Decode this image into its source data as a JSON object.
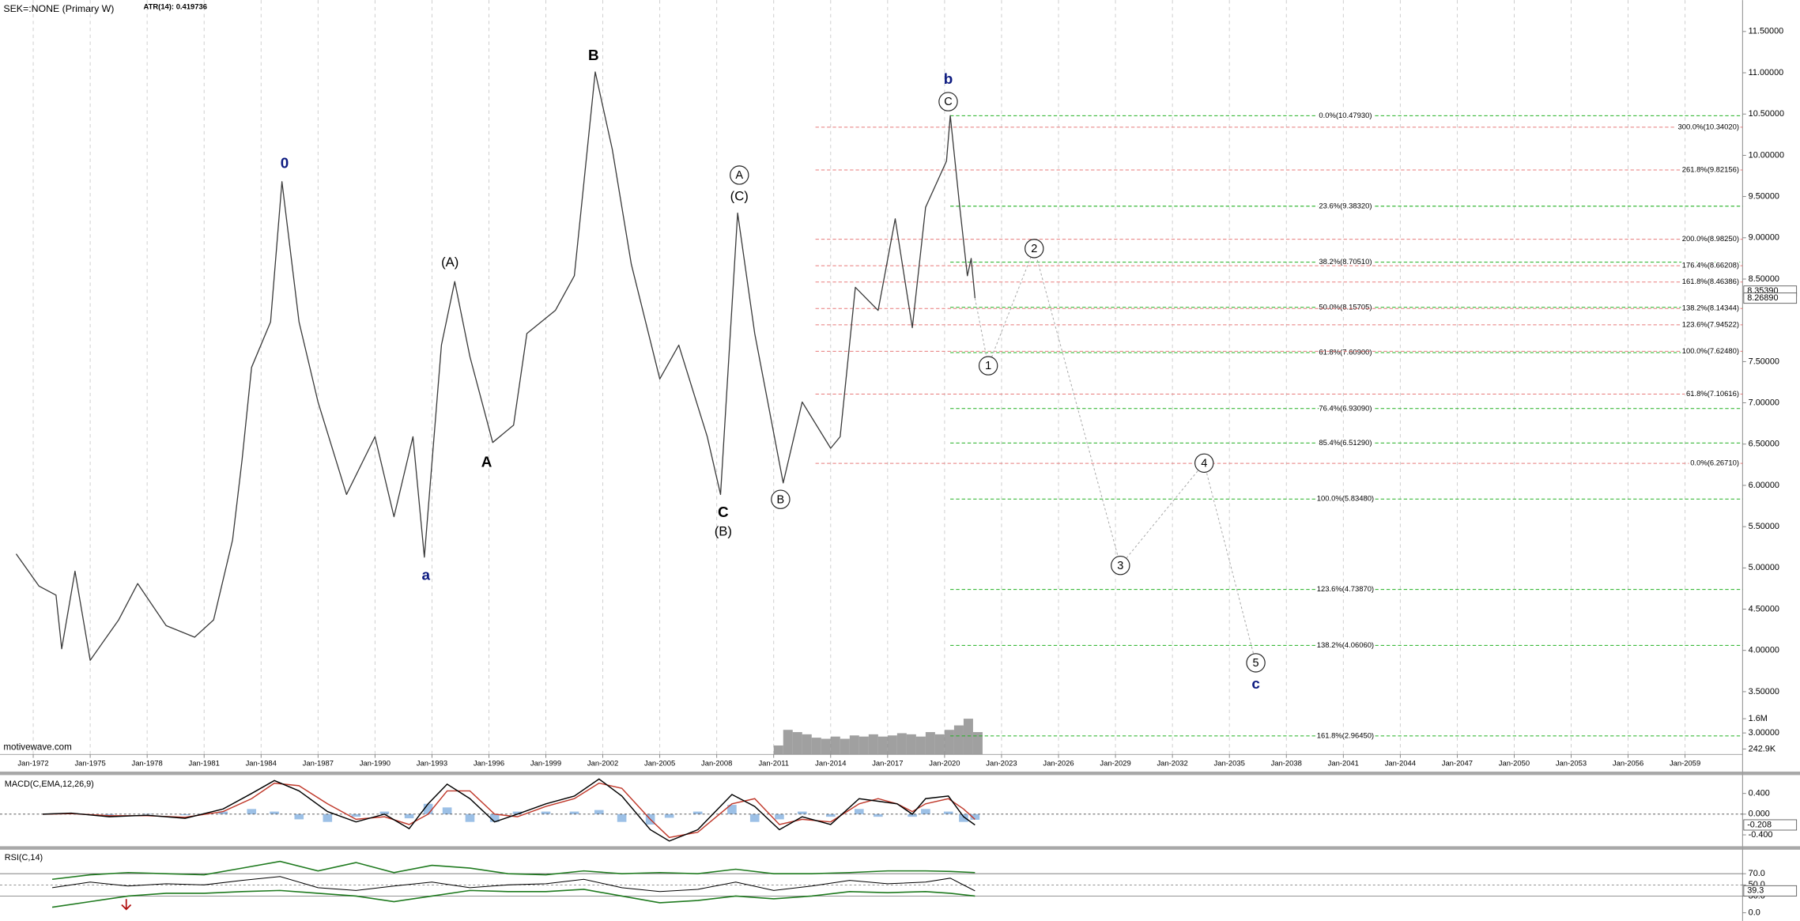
{
  "chart_data": [
    {
      "type": "line",
      "title": "SEK=:NONE (Primary W)",
      "subtitle": "ATR(14): 0.419736",
      "watermark": "motivewave.com",
      "color": "#3a3a3a",
      "grid": "x",
      "x": [
        1971.1,
        1972.3,
        1973.2,
        1973.5,
        1974.2,
        1975.0,
        1976.5,
        1977.5,
        1979.0,
        1980.5,
        1981.5,
        1982.5,
        1983.0,
        1983.5,
        1984.5,
        1985.1,
        1986.0,
        1987.0,
        1988.5,
        1990.0,
        1991.0,
        1992.0,
        1992.6,
        1993.5,
        1994.2,
        1995.0,
        1996.2,
        1997.3,
        1998.0,
        1999.5,
        2000.5,
        2001.6,
        2002.5,
        2003.5,
        2005.0,
        2006.0,
        2007.5,
        2008.2,
        2009.1,
        2010.0,
        2011.5,
        2012.5,
        2014.0,
        2014.5,
        2015.3,
        2016.5,
        2017.4,
        2018.3,
        2019.0,
        2020.1,
        2020.3,
        2020.8,
        2021.2,
        2021.4,
        2021.6
      ],
      "values": [
        5.17,
        4.78,
        4.67,
        4.02,
        4.96,
        3.88,
        4.37,
        4.81,
        4.3,
        4.16,
        4.37,
        5.34,
        6.31,
        7.43,
        7.98,
        9.68,
        7.98,
        7.01,
        5.89,
        6.59,
        5.62,
        6.59,
        5.13,
        7.7,
        8.47,
        7.56,
        6.52,
        6.73,
        7.84,
        8.12,
        8.54,
        11.01,
        10.07,
        8.68,
        7.29,
        7.7,
        6.59,
        5.89,
        9.3,
        7.84,
        6.03,
        7.01,
        6.45,
        6.59,
        8.4,
        8.12,
        9.23,
        7.91,
        9.37,
        9.93,
        10.48,
        9.37,
        8.54,
        8.75,
        8.2689
      ],
      "xlim": [
        1970.25,
        2062.03
      ],
      "ylim": [
        2.74,
        11.88
      ],
      "xticks": [
        {
          "value": 1972,
          "label": "Jan-1972"
        },
        {
          "value": 1975,
          "label": "Jan-1975"
        },
        {
          "value": 1978,
          "label": "Jan-1978"
        },
        {
          "value": 1981,
          "label": "Jan-1981"
        },
        {
          "value": 1984,
          "label": "Jan-1984"
        },
        {
          "value": 1987,
          "label": "Jan-1987"
        },
        {
          "value": 1990,
          "label": "Jan-1990"
        },
        {
          "value": 1993,
          "label": "Jan-1993"
        },
        {
          "value": 1996,
          "label": "Jan-1996"
        },
        {
          "value": 1999,
          "label": "Jan-1999"
        },
        {
          "value": 2002,
          "label": "Jan-2002"
        },
        {
          "value": 2005,
          "label": "Jan-2005"
        },
        {
          "value": 2008,
          "label": "Jan-2008"
        },
        {
          "value": 2011,
          "label": "Jan-2011"
        },
        {
          "value": 2014,
          "label": "Jan-2014"
        },
        {
          "value": 2017,
          "label": "Jan-2017"
        },
        {
          "value": 2020,
          "label": "Jan-2020"
        },
        {
          "value": 2023,
          "label": "Jan-2023"
        },
        {
          "value": 2026,
          "label": "Jan-2026"
        },
        {
          "value": 2029,
          "label": "Jan-2029"
        },
        {
          "value": 2032,
          "label": "Jan-2032"
        },
        {
          "value": 2035,
          "label": "Jan-2035"
        },
        {
          "value": 2038,
          "label": "Jan-2038"
        },
        {
          "value": 2041,
          "label": "Jan-2041"
        },
        {
          "value": 2044,
          "label": "Jan-2044"
        },
        {
          "value": 2047,
          "label": "Jan-2047"
        },
        {
          "value": 2050,
          "label": "Jan-2050"
        },
        {
          "value": 2053,
          "label": "Jan-2053"
        },
        {
          "value": 2056,
          "label": "Jan-2056"
        },
        {
          "value": 2059,
          "label": "Jan-2059"
        }
      ],
      "yticks": [
        {
          "value": 3.0,
          "label": "3.00000"
        },
        {
          "value": 3.5,
          "label": "3.50000"
        },
        {
          "value": 4.0,
          "label": "4.00000"
        },
        {
          "value": 4.5,
          "label": "4.50000"
        },
        {
          "value": 5.0,
          "label": "5.00000"
        },
        {
          "value": 5.5,
          "label": "5.50000"
        },
        {
          "value": 6.0,
          "label": "6.00000"
        },
        {
          "value": 6.5,
          "label": "6.50000"
        },
        {
          "value": 7.0,
          "label": "7.00000"
        },
        {
          "value": 7.5,
          "label": "7.50000"
        },
        {
          "value": 8.5,
          "label": "8.50000"
        },
        {
          "value": 9.0,
          "label": "9.00000"
        },
        {
          "value": 9.5,
          "label": "9.50000"
        },
        {
          "value": 10.0,
          "label": "10.00000"
        },
        {
          "value": 10.5,
          "label": "10.50000"
        },
        {
          "value": 11.0,
          "label": "11.00000"
        },
        {
          "value": 11.5,
          "label": "11.50000"
        }
      ],
      "price_labels": [
        {
          "value": 8.3539,
          "label": "8.35390"
        },
        {
          "value": 8.2689,
          "label": "8.26890"
        }
      ],
      "fib_levels": [
        {
          "level": 10.4793,
          "label": "0.0%(10.47930)",
          "color": "#22b022",
          "from": 2020.3
        },
        {
          "level": 9.3832,
          "label": "23.6%(9.38320)",
          "color": "#22b022",
          "from": 2020.3
        },
        {
          "level": 8.7051,
          "label": "38.2%(8.70510)",
          "color": "#22b022",
          "from": 2020.3
        },
        {
          "level": 8.15705,
          "label": "50.0%(8.15705)",
          "color": "#22b022",
          "from": 2020.3
        },
        {
          "level": 7.609,
          "label": "61.8%(7.60900)",
          "color": "#22b022",
          "from": 2020.3
        },
        {
          "level": 6.9309,
          "label": "76.4%(6.93090)",
          "color": "#22b022",
          "from": 2020.3
        },
        {
          "level": 6.5129,
          "label": "85.4%(6.51290)",
          "color": "#22b022",
          "from": 2020.3
        },
        {
          "level": 5.8348,
          "label": "100.0%(5.83480)",
          "color": "#22b022",
          "from": 2020.3
        },
        {
          "level": 4.7387,
          "label": "123.6%(4.73870)",
          "color": "#22b022",
          "from": 2020.3
        },
        {
          "level": 4.0606,
          "label": "138.2%(4.06060)",
          "color": "#22b022",
          "from": 2020.3
        },
        {
          "level": 2.9645,
          "label": "161.8%(2.96450)",
          "color": "#22b022",
          "from": 2020.3
        },
        {
          "level": 10.3402,
          "label": "300.0%(10.34020)",
          "color": "#e87a7a",
          "from": 2013.2
        },
        {
          "level": 9.82156,
          "label": "261.8%(9.82156)",
          "color": "#e87a7a",
          "from": 2013.2
        },
        {
          "level": 8.9825,
          "label": "200.0%(8.98250)",
          "color": "#e87a7a",
          "from": 2013.2
        },
        {
          "level": 8.66208,
          "label": "176.4%(8.66208)",
          "color": "#e87a7a",
          "from": 2013.2
        },
        {
          "level": 8.46386,
          "label": "161.8%(8.46386)",
          "color": "#e87a7a",
          "from": 2013.2
        },
        {
          "level": 8.14344,
          "label": "138.2%(8.14344)",
          "color": "#e87a7a",
          "from": 2013.2
        },
        {
          "level": 7.94522,
          "label": "123.6%(7.94522)",
          "color": "#e87a7a",
          "from": 2013.2
        },
        {
          "level": 7.6248,
          "label": "100.0%(7.62480)",
          "color": "#e87a7a",
          "from": 2013.2
        },
        {
          "level": 7.10616,
          "label": "61.8%(7.10616)",
          "color": "#e87a7a",
          "from": 2013.2
        },
        {
          "level": 6.2671,
          "label": "0.0%(6.26710)",
          "color": "#e87a7a",
          "from": 2013.2
        }
      ],
      "annotations": [
        {
          "text": "0",
          "x": 1985.24,
          "y": 9.9,
          "color": "#0c1a80",
          "style": "bold"
        },
        {
          "text": "a",
          "x": 1992.68,
          "y": 4.91,
          "color": "#0c1a80",
          "style": "bold"
        },
        {
          "text": "(A)",
          "x": 1993.95,
          "y": 8.7,
          "color": "#000000",
          "style": "plain"
        },
        {
          "text": "A",
          "x": 1995.88,
          "y": 6.28,
          "color": "#000000",
          "style": "bold"
        },
        {
          "text": "B",
          "x": 2001.51,
          "y": 11.21,
          "color": "#000000",
          "style": "bold"
        },
        {
          "text": "A",
          "x": 2009.19,
          "y": 9.76,
          "color": "#000000",
          "style": "circle"
        },
        {
          "text": "(C)",
          "x": 2009.19,
          "y": 9.5,
          "color": "#000000",
          "style": "plain"
        },
        {
          "text": "C",
          "x": 2008.34,
          "y": 5.67,
          "color": "#000000",
          "style": "bold"
        },
        {
          "text": "(B)",
          "x": 2008.34,
          "y": 5.44,
          "color": "#000000",
          "style": "plain"
        },
        {
          "text": "B",
          "x": 2011.36,
          "y": 5.83,
          "color": "#000000",
          "style": "circle"
        },
        {
          "text": "b",
          "x": 2020.19,
          "y": 10.92,
          "color": "#0c1a80",
          "style": "bold"
        },
        {
          "text": "C",
          "x": 2020.19,
          "y": 10.65,
          "color": "#000000",
          "style": "circle"
        },
        {
          "text": "c",
          "x": 2036.39,
          "y": 3.59,
          "color": "#0c1a80",
          "style": "bold"
        }
      ],
      "projection": {
        "labels": [
          "1",
          "2",
          "3",
          "4",
          "5"
        ],
        "x": [
          2022.3,
          2024.72,
          2029.26,
          2033.67,
          2036.39
        ],
        "values": [
          7.45,
          8.87,
          5.03,
          6.27,
          3.85
        ]
      },
      "volume": {
        "color": "#808080",
        "x": [
          2011.0,
          2011.5,
          2012.0,
          2012.5,
          2013.0,
          2013.5,
          2014.0,
          2014.5,
          2015.0,
          2015.5,
          2016.0,
          2016.5,
          2017.0,
          2017.5,
          2018.0,
          2018.5,
          2019.0,
          2019.5,
          2020.0,
          2020.5,
          2021.0,
          2021.5
        ],
        "values": [
          400000,
          1100000,
          1000000,
          900000,
          750000,
          700000,
          800000,
          700000,
          850000,
          800000,
          900000,
          800000,
          850000,
          950000,
          900000,
          800000,
          1000000,
          900000,
          1100000,
          1300000,
          1600000,
          1000000
        ],
        "ylim": [
          0,
          1750000
        ],
        "yticks": [
          {
            "value": 1600000,
            "label": "1.6M"
          },
          {
            "value": 242900,
            "label": "242.9K"
          }
        ]
      }
    },
    {
      "type": "line",
      "title": "MACD(C,EMA,12,26,9)",
      "x": [
        1972.5,
        1974,
        1976,
        1978,
        1980,
        1982,
        1983.5,
        1984.7,
        1986,
        1987.5,
        1989,
        1990.5,
        1991.8,
        1992.8,
        1993.8,
        1995,
        1996.3,
        1997.5,
        1999,
        2000.5,
        2001.8,
        2003,
        2004.5,
        2005.5,
        2007,
        2008.8,
        2010,
        2011.3,
        2012.5,
        2014,
        2015.5,
        2016.5,
        2017.5,
        2018.3,
        2019,
        2020.2,
        2021,
        2021.6
      ],
      "series": [
        {
          "color": "#000000",
          "values": [
            0.0,
            0.02,
            -0.05,
            -0.02,
            -0.08,
            0.1,
            0.4,
            0.65,
            0.45,
            0.05,
            -0.15,
            0.0,
            -0.28,
            0.2,
            0.58,
            0.3,
            -0.15,
            0.0,
            0.2,
            0.35,
            0.68,
            0.35,
            -0.3,
            -0.52,
            -0.3,
            0.38,
            0.15,
            -0.3,
            -0.05,
            -0.2,
            0.3,
            0.25,
            0.2,
            0.0,
            0.3,
            0.35,
            -0.05,
            -0.208
          ]
        },
        {
          "color": "#c0392b",
          "values": [
            0.0,
            0.01,
            -0.03,
            -0.03,
            -0.06,
            0.05,
            0.3,
            0.6,
            0.55,
            0.2,
            -0.1,
            -0.05,
            -0.2,
            0.0,
            0.45,
            0.45,
            0.0,
            -0.05,
            0.15,
            0.3,
            0.6,
            0.5,
            -0.1,
            -0.45,
            -0.35,
            0.2,
            0.3,
            -0.2,
            -0.1,
            -0.15,
            0.2,
            0.3,
            0.2,
            0.05,
            0.2,
            0.3,
            0.1,
            -0.1
          ]
        }
      ],
      "histogram": {
        "color": "#9cc0e6",
        "values": [
          0.0,
          0.01,
          -0.02,
          0.01,
          -0.02,
          0.05,
          0.1,
          0.05,
          -0.1,
          -0.15,
          -0.05,
          0.05,
          -0.08,
          0.2,
          0.13,
          -0.15,
          -0.15,
          0.05,
          0.05,
          0.05,
          0.08,
          -0.15,
          -0.2,
          -0.07,
          0.05,
          0.18,
          -0.15,
          -0.1,
          0.05,
          -0.05,
          0.1,
          -0.05,
          0.0,
          -0.05,
          0.1,
          0.05,
          -0.15,
          -0.108
        ]
      },
      "ylim": [
        -0.62,
        0.756
      ],
      "yticks": [
        {
          "value": 0.4,
          "label": "0.400"
        },
        {
          "value": 0,
          "label": "0.000"
        },
        {
          "value": -0.4,
          "label": "-0.400"
        }
      ],
      "last_label": {
        "value": -0.208,
        "label": "-0.208"
      }
    },
    {
      "type": "line",
      "title": "RSI(C,14)",
      "x": [
        1973,
        1975,
        1977,
        1979,
        1981,
        1983,
        1985,
        1987,
        1989,
        1991,
        1993,
        1995,
        1997,
        1999,
        2001,
        2003,
        2005,
        2007,
        2009,
        2011,
        2013,
        2015,
        2017,
        2019,
        2020.3,
        2021.6
      ],
      "series": [
        {
          "color": "#1f7a1f",
          "values": [
            60,
            68,
            72,
            70,
            68,
            80,
            92,
            75,
            90,
            72,
            85,
            80,
            70,
            68,
            75,
            70,
            72,
            70,
            78,
            70,
            70,
            72,
            75,
            75,
            74,
            72
          ]
        },
        {
          "color": "#1f7a1f",
          "values": [
            10,
            20,
            30,
            35,
            35,
            38,
            40,
            35,
            30,
            20,
            30,
            40,
            38,
            38,
            42,
            30,
            18,
            22,
            30,
            25,
            30,
            38,
            36,
            38,
            35,
            30
          ]
        },
        {
          "color": "#000000",
          "values": [
            45,
            55,
            48,
            52,
            50,
            58,
            65,
            45,
            40,
            48,
            55,
            45,
            50,
            52,
            60,
            45,
            38,
            42,
            55,
            40,
            48,
            58,
            52,
            55,
            62,
            39.3
          ]
        }
      ],
      "ylim": [
        -14.4,
        113
      ],
      "yticks": [
        {
          "value": 70,
          "label": "70.0"
        },
        {
          "value": 50,
          "label": "50.0"
        },
        {
          "value": 30,
          "label": "30.0"
        },
        {
          "value": 0,
          "label": "0.0"
        }
      ],
      "last_label": {
        "value": 39.3,
        "label": "39.3"
      }
    }
  ]
}
